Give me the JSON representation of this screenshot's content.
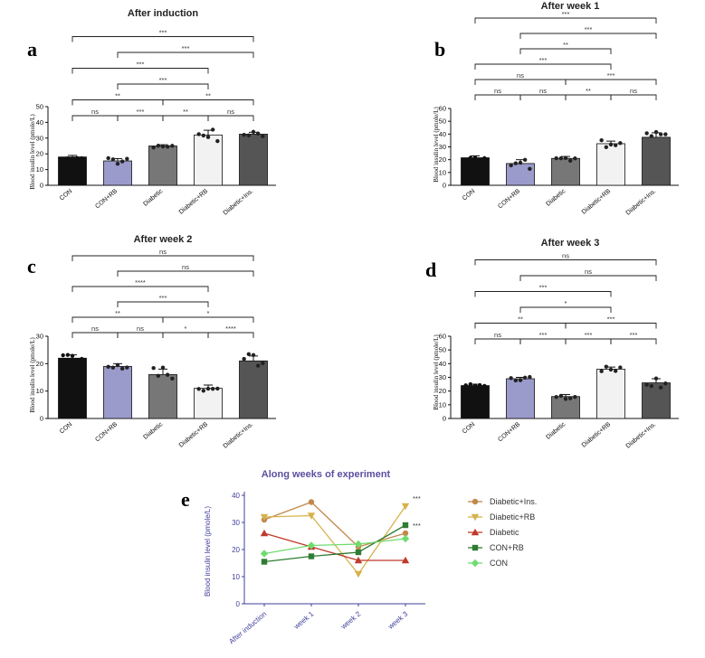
{
  "chart_data": [
    {
      "panel": "a",
      "type": "bar",
      "title": "After induction",
      "ylabel": "Blood insulin level (pmole/L)",
      "ylim": [
        0,
        50
      ],
      "yticks": [
        0,
        10,
        20,
        30,
        40,
        50
      ],
      "categories": [
        "CON",
        "CON+RB",
        "Diabetic",
        "Diabetic+RB",
        "Diabetic+Ins."
      ],
      "values": [
        18,
        15.5,
        25,
        32,
        32.5
      ],
      "errors": [
        1,
        1.5,
        0.8,
        3,
        1.2
      ],
      "colors": [
        "#111111",
        "#9a9acb",
        "#777777",
        "#f2f2f2",
        "#555555"
      ],
      "significance": [
        {
          "from": 0,
          "to": 1,
          "label": "ns",
          "level": 0
        },
        {
          "from": 1,
          "to": 2,
          "label": "***",
          "level": 0
        },
        {
          "from": 2,
          "to": 3,
          "label": "**",
          "level": 0
        },
        {
          "from": 3,
          "to": 4,
          "label": "ns",
          "level": 0
        },
        {
          "from": 0,
          "to": 2,
          "label": "**",
          "level": 1
        },
        {
          "from": 2,
          "to": 4,
          "label": "**",
          "level": 1
        },
        {
          "from": 1,
          "to": 3,
          "label": "***",
          "level": 2
        },
        {
          "from": 0,
          "to": 3,
          "label": "***",
          "level": 3
        },
        {
          "from": 1,
          "to": 4,
          "label": "***",
          "level": 4
        },
        {
          "from": 0,
          "to": 4,
          "label": "***",
          "level": 5
        }
      ]
    },
    {
      "panel": "b",
      "type": "bar",
      "title": "After week 1",
      "ylabel": "Blood insulin level (pmole/L)",
      "ylim": [
        0,
        60
      ],
      "yticks": [
        0,
        10,
        20,
        30,
        40,
        50,
        60
      ],
      "categories": [
        "CON",
        "CON+RB",
        "Diabetic",
        "Diabetic+RB",
        "Diabetic+Ins."
      ],
      "values": [
        21.5,
        17,
        21,
        32.5,
        37.5
      ],
      "errors": [
        1.5,
        3,
        1.5,
        2,
        3.5
      ],
      "colors": [
        "#111111",
        "#9a9acb",
        "#777777",
        "#f2f2f2",
        "#555555"
      ],
      "significance": [
        {
          "from": 0,
          "to": 1,
          "label": "ns",
          "level": 0
        },
        {
          "from": 1,
          "to": 2,
          "label": "ns",
          "level": 0
        },
        {
          "from": 2,
          "to": 3,
          "label": "**",
          "level": 0
        },
        {
          "from": 3,
          "to": 4,
          "label": "ns",
          "level": 0
        },
        {
          "from": 0,
          "to": 2,
          "label": "ns",
          "level": 1
        },
        {
          "from": 2,
          "to": 4,
          "label": "***",
          "level": 1
        },
        {
          "from": 0,
          "to": 3,
          "label": "***",
          "level": 2
        },
        {
          "from": 1,
          "to": 3,
          "label": "**",
          "level": 3
        },
        {
          "from": 1,
          "to": 4,
          "label": "***",
          "level": 4
        },
        {
          "from": 0,
          "to": 4,
          "label": "***",
          "level": 5
        }
      ]
    },
    {
      "panel": "c",
      "type": "bar",
      "title": "After week 2",
      "ylabel": "Blood insulin level (pmole/L)",
      "ylim": [
        0,
        30
      ],
      "yticks": [
        0,
        10,
        20,
        30
      ],
      "categories": [
        "CON",
        "CON+RB",
        "Diabetic",
        "Diabetic+RB",
        "Diabetic+Ins."
      ],
      "values": [
        22,
        19,
        16,
        11,
        21
      ],
      "errors": [
        1.2,
        1,
        2,
        1.2,
        1.8
      ],
      "colors": [
        "#111111",
        "#9a9acb",
        "#777777",
        "#f2f2f2",
        "#555555"
      ],
      "significance": [
        {
          "from": 0,
          "to": 1,
          "label": "ns",
          "level": 0
        },
        {
          "from": 1,
          "to": 2,
          "label": "ns",
          "level": 0
        },
        {
          "from": 2,
          "to": 3,
          "label": "*",
          "level": 0
        },
        {
          "from": 3,
          "to": 4,
          "label": "****",
          "level": 0
        },
        {
          "from": 0,
          "to": 2,
          "label": "**",
          "level": 1
        },
        {
          "from": 2,
          "to": 4,
          "label": "*",
          "level": 1
        },
        {
          "from": 1,
          "to": 3,
          "label": "***",
          "level": 2
        },
        {
          "from": 0,
          "to": 3,
          "label": "****",
          "level": 3
        },
        {
          "from": 1,
          "to": 4,
          "label": "ns",
          "level": 4
        },
        {
          "from": 0,
          "to": 4,
          "label": "ns",
          "level": 5
        }
      ]
    },
    {
      "panel": "d",
      "type": "bar",
      "title": "After week 3",
      "ylabel": "Blood insulin level (pmole/L)",
      "ylim": [
        0,
        60
      ],
      "yticks": [
        0,
        10,
        20,
        30,
        40,
        50,
        60
      ],
      "categories": [
        "CON",
        "CON+RB",
        "Diabetic",
        "Diabetic+RB",
        "Diabetic+Ins."
      ],
      "values": [
        24,
        29,
        16,
        36,
        26
      ],
      "errors": [
        1,
        1,
        1.5,
        1.5,
        3
      ],
      "colors": [
        "#111111",
        "#9a9acb",
        "#777777",
        "#f2f2f2",
        "#555555"
      ],
      "significance": [
        {
          "from": 0,
          "to": 1,
          "label": "ns",
          "level": 0
        },
        {
          "from": 1,
          "to": 2,
          "label": "***",
          "level": 0
        },
        {
          "from": 2,
          "to": 3,
          "label": "***",
          "level": 0
        },
        {
          "from": 3,
          "to": 4,
          "label": "***",
          "level": 0
        },
        {
          "from": 0,
          "to": 2,
          "label": "**",
          "level": 1
        },
        {
          "from": 2,
          "to": 4,
          "label": "***",
          "level": 1
        },
        {
          "from": 1,
          "to": 3,
          "label": "*",
          "level": 2
        },
        {
          "from": 0,
          "to": 3,
          "label": "***",
          "level": 3
        },
        {
          "from": 1,
          "to": 4,
          "label": "ns",
          "level": 4
        },
        {
          "from": 0,
          "to": 4,
          "label": "ns",
          "level": 5
        }
      ]
    },
    {
      "panel": "e",
      "type": "line",
      "title": "Along weeks of experiment",
      "ylabel": "Blood insulin level (pmole/L)",
      "ylim": [
        0,
        40
      ],
      "yticks": [
        0,
        10,
        20,
        30,
        40
      ],
      "categories": [
        "After induction",
        "week 1",
        "week 2",
        "week 3"
      ],
      "series": [
        {
          "name": "Diabetic+Ins.",
          "values": [
            31,
            37.5,
            21,
            26
          ],
          "color": "#c2874a",
          "marker": "circle"
        },
        {
          "name": "Diabetic+RB",
          "values": [
            32,
            32.5,
            11,
            36
          ],
          "color": "#d6b24c",
          "marker": "triangle-down"
        },
        {
          "name": "Diabetic",
          "values": [
            26,
            21,
            16,
            16
          ],
          "color": "#c0392b",
          "marker": "triangle-up"
        },
        {
          "name": "CON+RB",
          "values": [
            15.5,
            17.5,
            19,
            29
          ],
          "color": "#2e7d32",
          "marker": "square"
        },
        {
          "name": "CON",
          "values": [
            18.5,
            21.5,
            22,
            24
          ],
          "color": "#6fdc6f",
          "marker": "diamond"
        }
      ],
      "annotations": [
        {
          "category": 3,
          "series": "Diabetic+RB",
          "label": "***"
        },
        {
          "category": 3,
          "series": "CON+RB",
          "label": "***"
        }
      ]
    }
  ]
}
